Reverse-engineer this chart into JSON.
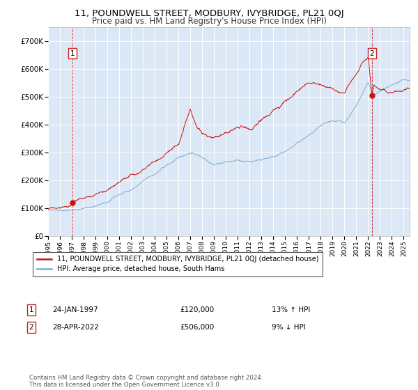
{
  "title": "11, POUNDWELL STREET, MODBURY, IVYBRIDGE, PL21 0QJ",
  "subtitle": "Price paid vs. HM Land Registry's House Price Index (HPI)",
  "ylim": [
    0,
    750000
  ],
  "yticks": [
    0,
    100000,
    200000,
    300000,
    400000,
    500000,
    600000,
    700000
  ],
  "ytick_labels": [
    "£0",
    "£100K",
    "£200K",
    "£300K",
    "£400K",
    "£500K",
    "£600K",
    "£700K"
  ],
  "xlim_start": 1995.0,
  "xlim_end": 2025.5,
  "xticks": [
    1995,
    1996,
    1997,
    1998,
    1999,
    2000,
    2001,
    2002,
    2003,
    2004,
    2005,
    2006,
    2007,
    2008,
    2009,
    2010,
    2011,
    2012,
    2013,
    2014,
    2015,
    2016,
    2017,
    2018,
    2019,
    2020,
    2021,
    2022,
    2023,
    2024,
    2025
  ],
  "plot_bg_color": "#dce8f5",
  "grid_color": "#ffffff",
  "line1_color": "#cc1111",
  "line2_color": "#7badd4",
  "point1_x": 1997.07,
  "point1_y": 120000,
  "point2_x": 2022.32,
  "point2_y": 506000,
  "vline1_x": 1997.07,
  "vline2_x": 2022.32,
  "legend_line1": "11, POUNDWELL STREET, MODBURY, IVYBRIDGE, PL21 0QJ (detached house)",
  "legend_line2": "HPI: Average price, detached house, South Hams",
  "ann1_label": "1",
  "ann1_date": "24-JAN-1997",
  "ann1_price": "£120,000",
  "ann1_hpi": "13% ↑ HPI",
  "ann2_label": "2",
  "ann2_date": "28-APR-2022",
  "ann2_price": "£506,000",
  "ann2_hpi": "9% ↓ HPI",
  "footnote": "Contains HM Land Registry data © Crown copyright and database right 2024.\nThis data is licensed under the Open Government Licence v3.0.",
  "title_fontsize": 9.5,
  "subtitle_fontsize": 8.5
}
